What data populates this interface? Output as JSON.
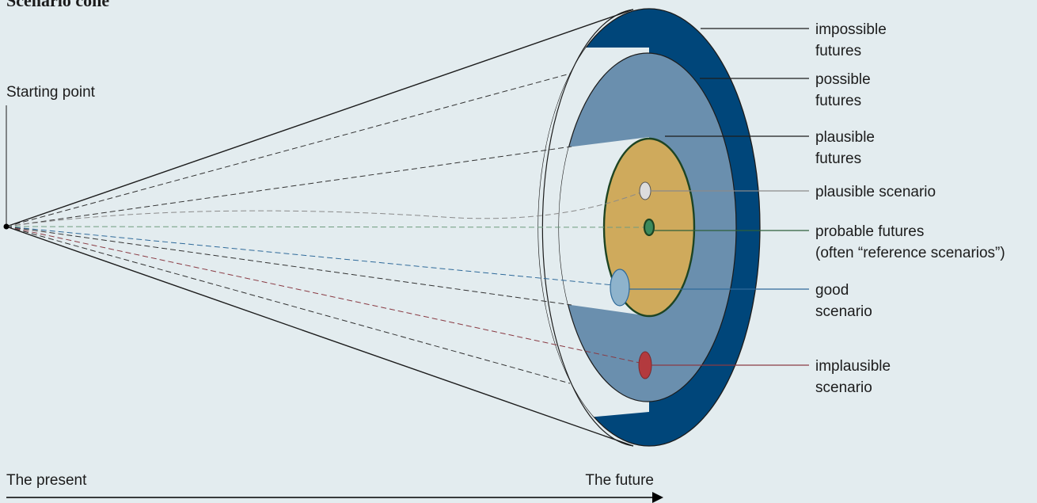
{
  "title": "Scenario cone",
  "starting_point": "Starting point",
  "axis": {
    "present": "The present",
    "future": "The future"
  },
  "labels": {
    "impossible": [
      "impossible",
      "futures"
    ],
    "possible": [
      "possible",
      "futures"
    ],
    "plausible": [
      "plausible",
      "futures"
    ],
    "plausible_scenario": [
      "plausible scenario"
    ],
    "probable": [
      "probable futures",
      "(often “reference scenarios”)"
    ],
    "good": [
      "good",
      "scenario"
    ],
    "implausible": [
      "implausible",
      "scenario"
    ]
  },
  "colors": {
    "background": "#e3ecef",
    "impossible_band": "#00467a",
    "possible_area": "#6a8fae",
    "probable_area": "#cfaa5c",
    "probable_border": "#1d4423",
    "plausible_scenario_dot": "#dcdcdc",
    "probable_dot": "#3c8a5c",
    "good_dot": "#8eb3cc",
    "implausible_dot": "#b33a3e",
    "leader_plausible_scenario": "#8a8a8a",
    "leader_probable": "#2d5f3a",
    "leader_good": "#2f6a9a",
    "leader_implausible": "#8a3b44"
  }
}
